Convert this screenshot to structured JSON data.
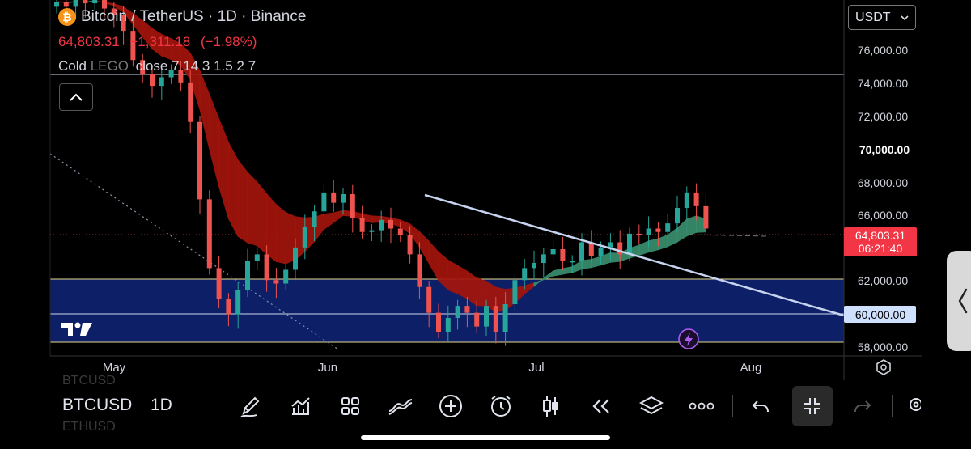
{
  "symbol": {
    "title": "Bitcoin / TetherUS · 1D · Binance",
    "badge": "₿",
    "last": "64,803.31",
    "change": "−1,311.18",
    "change_pct": "(−1.98%)"
  },
  "indicator": {
    "name": "Cold ",
    "name_muted": "LEGO",
    "params": "close 7 14 3 1.5 2 7"
  },
  "currency": "USDT",
  "price_axis": [
    "76,000.00",
    "74,000.00",
    "72,000.00",
    "70,000.00",
    "68,000.00",
    "66,000.00",
    "62,000.00",
    "60,000.00",
    "58,000.00"
  ],
  "price_label": {
    "value": "64,803.31",
    "countdown": "06:21:40"
  },
  "level_label": "60,000.00",
  "time_axis": [
    "May",
    "Jun",
    "Jul",
    "Aug"
  ],
  "bottom": {
    "symbol": "BTCUSD",
    "timeframe": "1D",
    "ghost_top": "BTCUSD",
    "ghost_bottom": "ETHUSD"
  },
  "toolbar_icons": [
    "pen-icon",
    "chart-bars-icon",
    "grid-icon",
    "indicators-icon",
    "add-icon",
    "alarm-icon",
    "candles-icon",
    "replay-icon",
    "layers-icon",
    "more-icon",
    "undo-icon",
    "collapse-icon",
    "redo-icon",
    "settings-icon"
  ],
  "colors": {
    "up": "#26a69a",
    "down": "#ef5350",
    "band": "#0d1f66",
    "ribbon_down": "#a3150d",
    "ribbon_up": "#3a8f6e",
    "trendline": "#c7d4f0"
  },
  "chart_data": {
    "type": "candlestick",
    "title": "Bitcoin / TetherUS · 1D · Binance",
    "ylim": [
      57500,
      78500
    ],
    "x": [
      "May",
      "Jun",
      "Jul",
      "Aug"
    ],
    "y_ticks": [
      58000,
      60000,
      62000,
      66000,
      68000,
      70000,
      72000,
      74000,
      76000
    ],
    "horizontal_levels": [
      74500,
      62000,
      60000,
      58300
    ],
    "zone": [
      58300,
      62000
    ],
    "last_price": 64803.31,
    "close_series": [
      78000,
      77700,
      78200,
      77900,
      78300,
      77600,
      77200,
      76300,
      74600,
      73800,
      73100,
      73600,
      74000,
      73300,
      71000,
      66500,
      62500,
      60700,
      59800,
      61200,
      62900,
      63300,
      61800,
      61600,
      62400,
      63700,
      64900,
      65800,
      66900,
      66300,
      66800,
      65400,
      64600,
      64700,
      65300,
      64800,
      64400,
      63300,
      61400,
      59900,
      58800,
      59600,
      60300,
      59900,
      59100,
      60300,
      58800,
      60400,
      61800,
      62500,
      62800,
      63300,
      63600,
      62900,
      62900,
      64000,
      63200,
      63700,
      64000,
      63300,
      64500,
      64400,
      64800,
      64600,
      65100,
      66000,
      66900,
      66100,
      64803
    ]
  }
}
